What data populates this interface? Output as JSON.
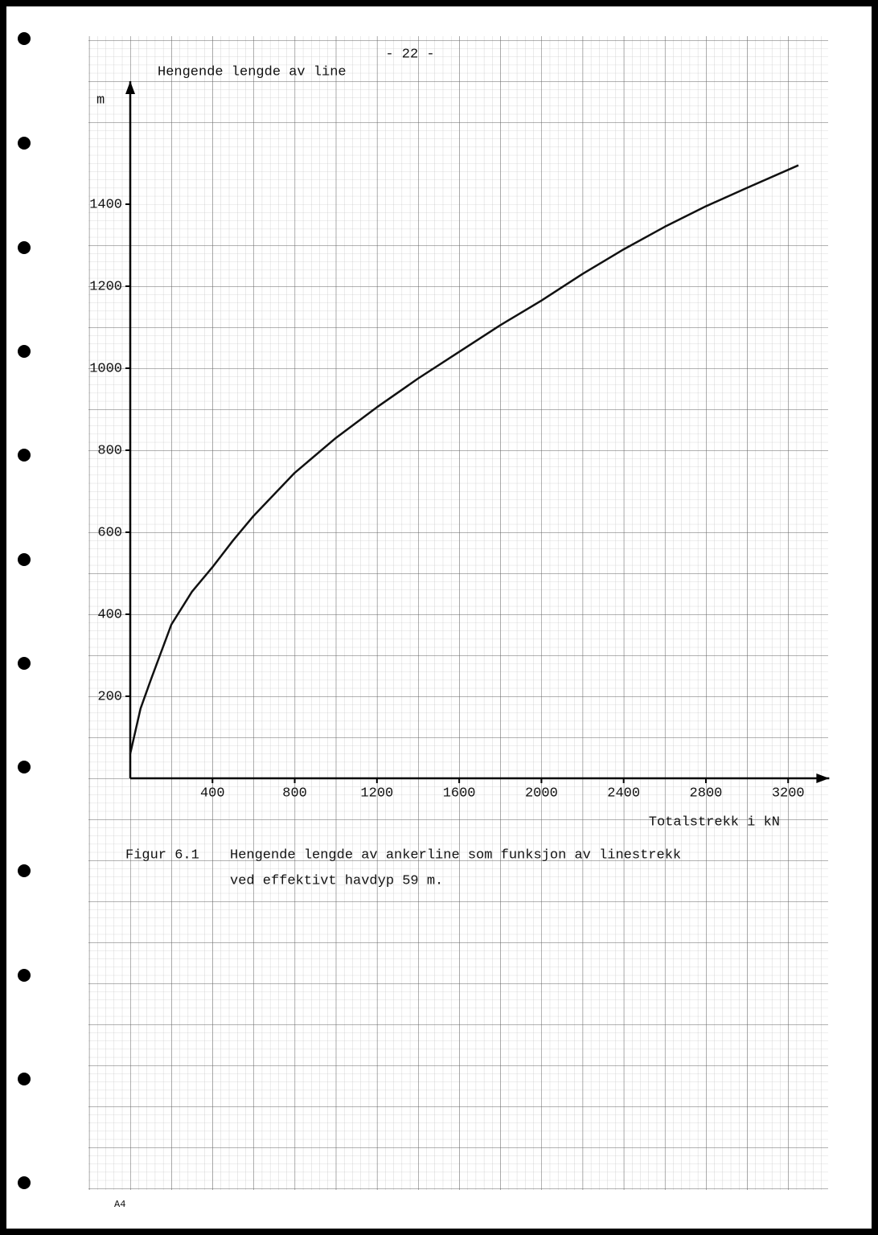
{
  "page_number": "- 22 -",
  "chart_data": {
    "type": "line",
    "title": "Hengende lengde av line",
    "y_label": "m",
    "x_label": "Totalstrekk i kN",
    "x": [
      0,
      50,
      100,
      200,
      300,
      400,
      500,
      600,
      800,
      1000,
      1200,
      1400,
      1600,
      1800,
      2000,
      2200,
      2400,
      2600,
      2800,
      3000,
      3250
    ],
    "series": [
      {
        "color": "#111111",
        "values": [
          60,
          170,
          240,
          375,
          455,
          515,
          580,
          640,
          745,
          830,
          905,
          975,
          1040,
          1105,
          1165,
          1230,
          1290,
          1345,
          1395,
          1440,
          1495
        ]
      }
    ],
    "xlim": [
      0,
      3400
    ],
    "ylim": [
      0,
      1700
    ],
    "xticks": [
      400,
      800,
      1200,
      1600,
      2000,
      2400,
      2800,
      3200
    ],
    "yticks": [
      200,
      400,
      600,
      800,
      1000,
      1200,
      1400
    ]
  },
  "figure_label": "Figur 6.1",
  "caption": [
    "Hengende lengde av ankerline som funksjon av linestrekk",
    "ved effektivt havdyp 59 m."
  ],
  "paper_mark": "A4"
}
